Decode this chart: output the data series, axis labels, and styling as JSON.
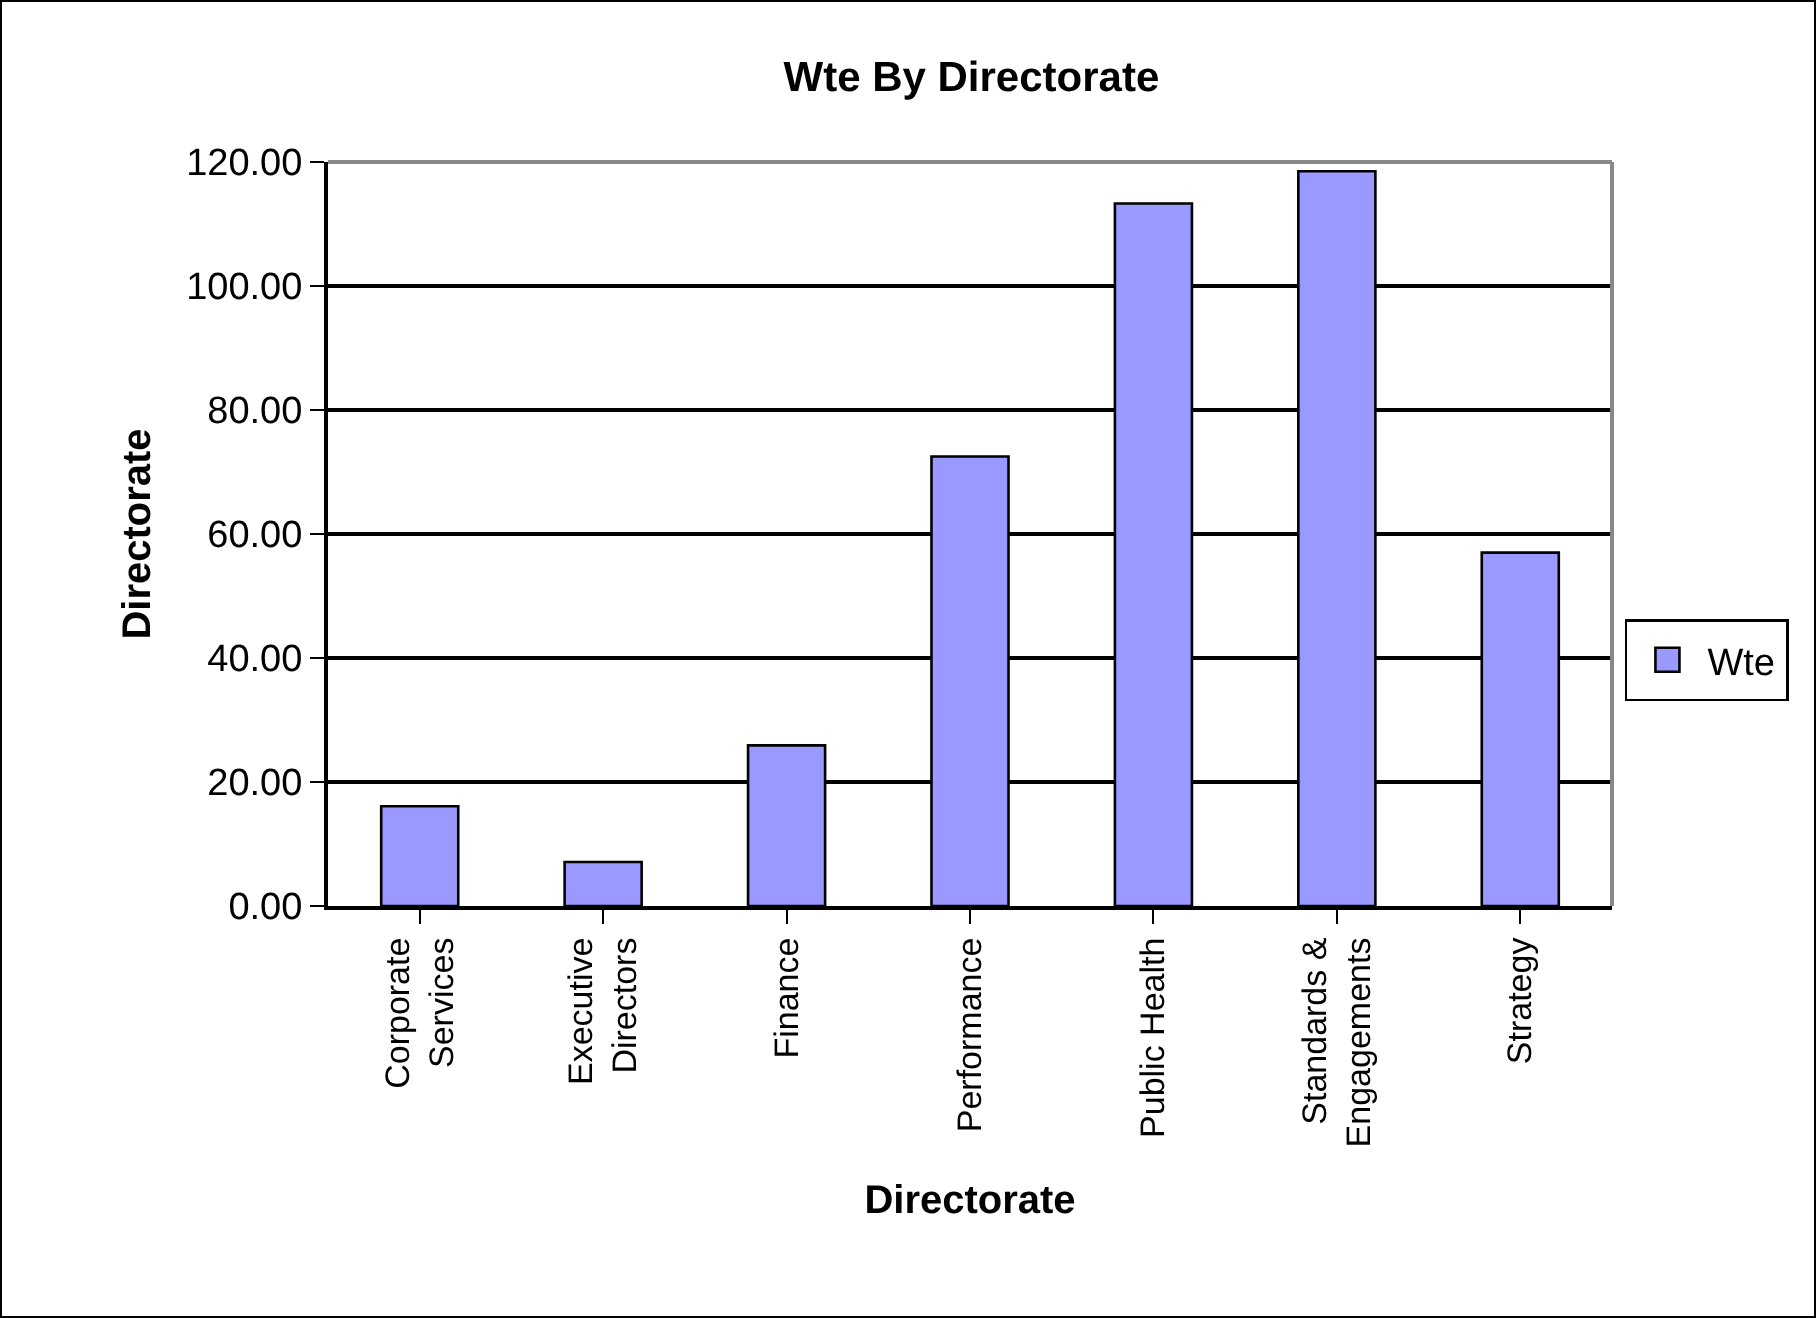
{
  "chart_data": {
    "type": "bar",
    "title": "Wte By Directorate",
    "xlabel": "Directorate",
    "ylabel": "Directorate",
    "categories": [
      "Corporate Services",
      "Executive Directors",
      "Finance",
      "Performance",
      "Public Health",
      "Standards & Engagements",
      "Strategy"
    ],
    "series": [
      {
        "name": "Wte",
        "color": "#9999ff",
        "values": [
          16.1,
          7.1,
          25.9,
          72.5,
          113.3,
          118.5,
          57.0
        ]
      }
    ],
    "ylim": [
      0,
      120
    ],
    "yticks": [
      {
        "value": 0,
        "label": "0.00"
      },
      {
        "value": 20,
        "label": "20.00"
      },
      {
        "value": 40,
        "label": "40.00"
      },
      {
        "value": 60,
        "label": "60.00"
      },
      {
        "value": 80,
        "label": "80.00"
      },
      {
        "value": 100,
        "label": "100.00"
      },
      {
        "value": 120,
        "label": "120.00"
      }
    ],
    "grid": "y",
    "legend": "right"
  }
}
